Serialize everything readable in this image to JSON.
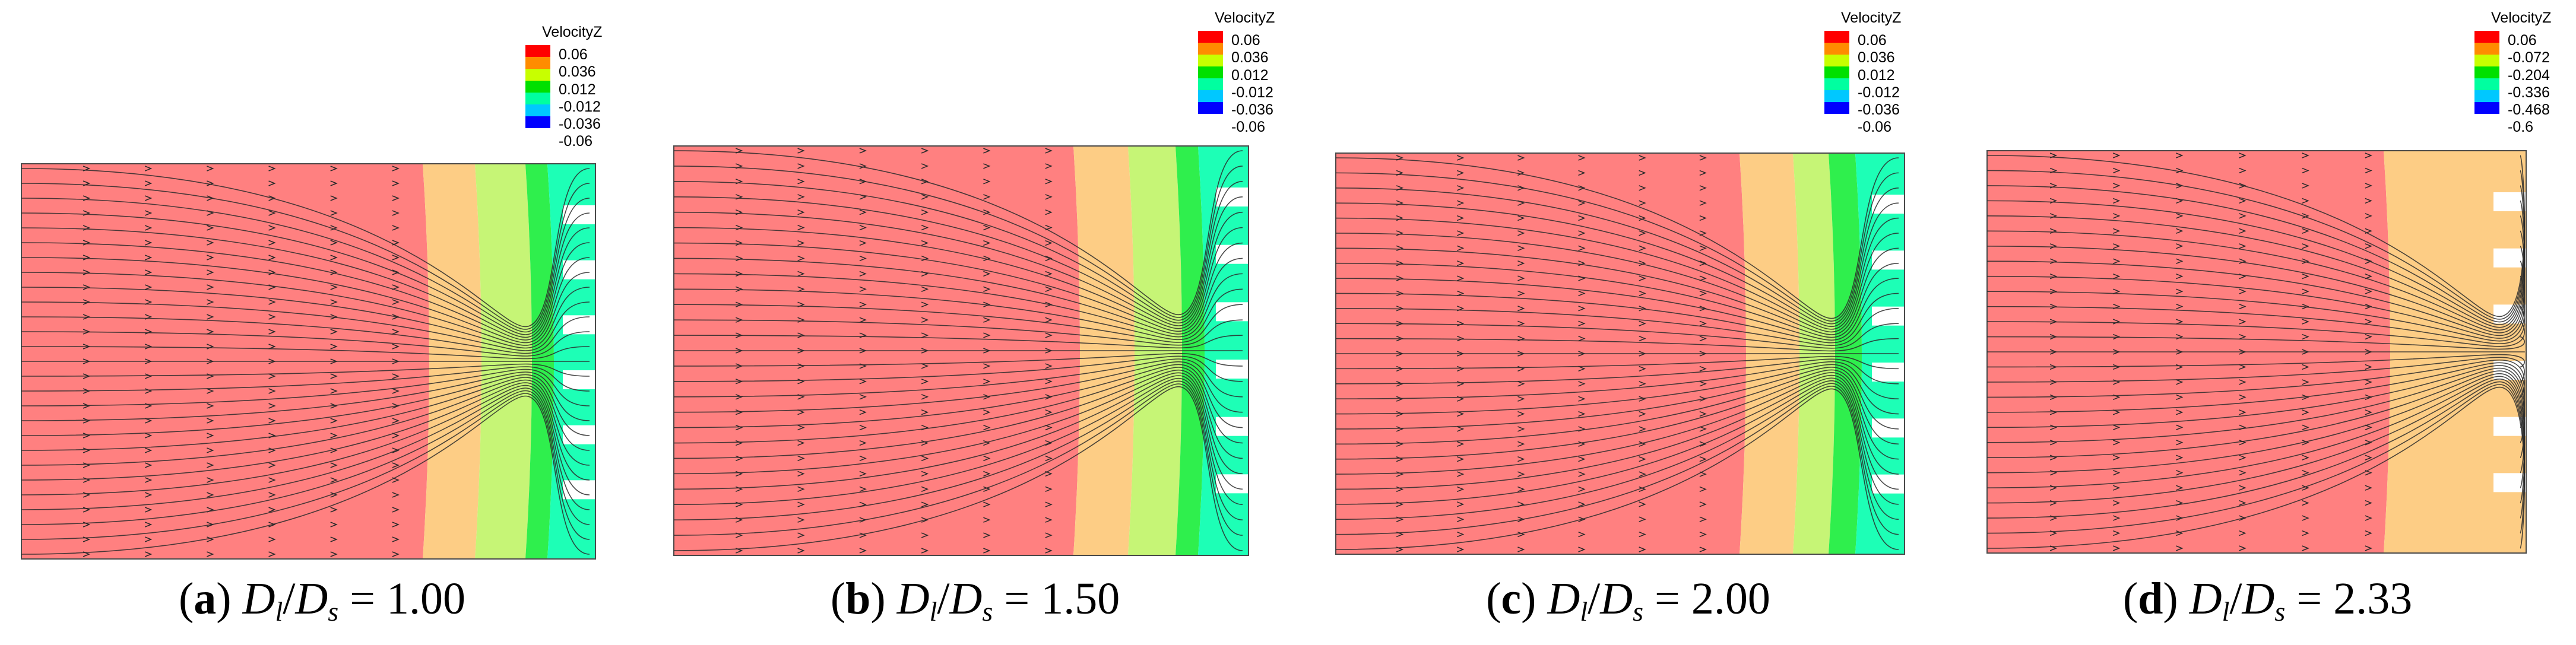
{
  "panels": [
    {
      "id": "a",
      "legend": {
        "title": "VelocityZ",
        "values": [
          "0.06",
          "0.036",
          "0.012",
          "-0.012",
          "-0.036",
          "-0.06"
        ]
      },
      "caption": {
        "label": "a",
        "lhs_main": "D",
        "lhs_sub": "l",
        "rhs_main": "D",
        "rhs_sub": "s",
        "equals": "=",
        "value": "1.00"
      }
    },
    {
      "id": "b",
      "legend": {
        "title": "VelocityZ",
        "values": [
          "0.06",
          "0.036",
          "0.012",
          "-0.012",
          "-0.036",
          "-0.06"
        ]
      },
      "caption": {
        "label": "b",
        "lhs_main": "D",
        "lhs_sub": "l",
        "rhs_main": "D",
        "rhs_sub": "s",
        "equals": "=",
        "value": "1.50"
      }
    },
    {
      "id": "c",
      "legend": {
        "title": "VelocityZ",
        "values": [
          "0.06",
          "0.036",
          "0.012",
          "-0.012",
          "-0.036",
          "-0.06"
        ]
      },
      "caption": {
        "label": "c",
        "lhs_main": "D",
        "lhs_sub": "l",
        "rhs_main": "D",
        "rhs_sub": "s",
        "equals": "=",
        "value": "2.00"
      }
    },
    {
      "id": "d",
      "legend": {
        "title": "VelocityZ",
        "values": [
          "0.06",
          "-0.072",
          "-0.204",
          "-0.336",
          "-0.468",
          "-0.6"
        ]
      },
      "caption": {
        "label": "d",
        "lhs_main": "D",
        "lhs_sub": "l",
        "rhs_main": "D",
        "rhs_sub": "s",
        "equals": "=",
        "value": "2.33"
      }
    }
  ],
  "colors": {
    "red_region": "#ff8080",
    "orange_region": "#fdcd85",
    "yellow_region": "#c6f576",
    "green_region": "#2fef4d",
    "cyan_region": "#1dffb6",
    "streamline": "#2a2a2a",
    "legend_scale": [
      "#ff0000",
      "#ff8c00",
      "#c8ff00",
      "#00e000",
      "#00ffa0",
      "#00c8ff",
      "#0000ff"
    ]
  }
}
